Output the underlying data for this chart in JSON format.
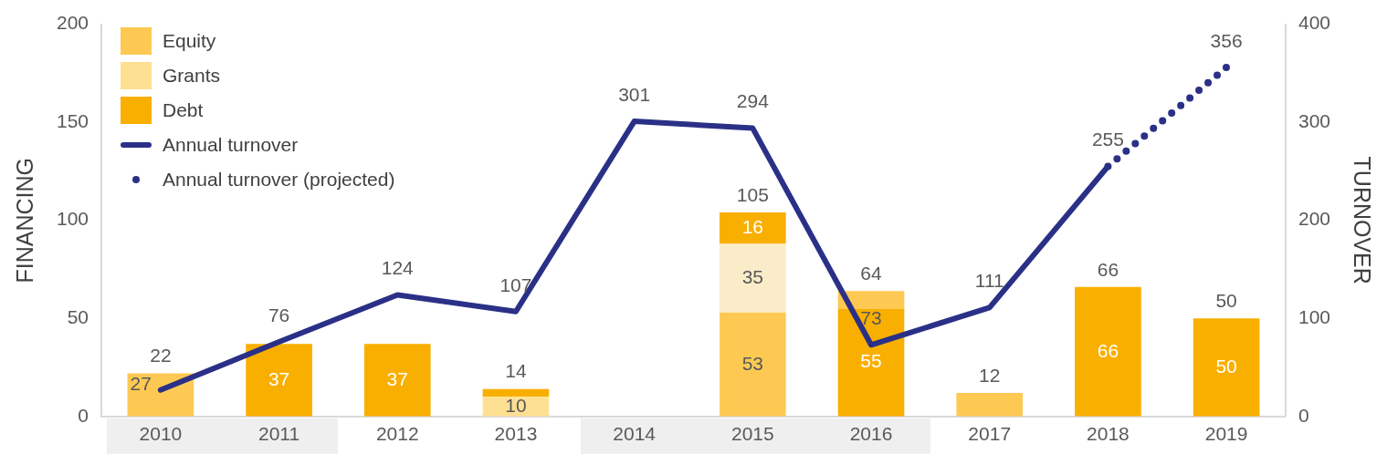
{
  "chart_data": {
    "type": "bar",
    "stacked": true,
    "categories": [
      "2010",
      "2011",
      "2012",
      "2013",
      "2014",
      "2015",
      "2016",
      "2017",
      "2018",
      "2019"
    ],
    "series": [
      {
        "color": "#f9af00",
        "values": [
          null,
          null,
          null,
          null,
          null,
          null,
          55,
          null,
          null,
          null
        ],
        "value_labels": [
          null,
          null,
          null,
          null,
          null,
          null,
          "55",
          null,
          null,
          null
        ]
      },
      {
        "name": "Equity",
        "color": "#fec953",
        "values": [
          22,
          null,
          null,
          null,
          null,
          53,
          9,
          12,
          null,
          null
        ],
        "value_labels": [
          null,
          null,
          null,
          null,
          null,
          "53",
          null,
          null,
          null,
          null
        ]
      },
      {
        "name": "Grants",
        "color": "#fee092",
        "colors": [
          "#fee092",
          "#fee092",
          "#fee092",
          "#fee092",
          "#fee092",
          "#fbecc9",
          "#fee092",
          "#fee092",
          "#fee092",
          "#fee092"
        ],
        "values": [
          null,
          null,
          null,
          10,
          null,
          35,
          null,
          null,
          null,
          null
        ],
        "value_labels": [
          null,
          null,
          null,
          "10",
          null,
          "35",
          null,
          null,
          null,
          null
        ]
      },
      {
        "name": "Debt",
        "color": "#f9af00",
        "values": [
          null,
          37,
          37,
          4,
          null,
          16,
          null,
          null,
          66,
          50
        ],
        "value_labels": [
          null,
          "37",
          "37",
          null,
          null,
          "16",
          null,
          null,
          "66",
          "50"
        ]
      },
      {
        "name": "Annual turnover",
        "type": "line",
        "axis": "y2",
        "color": "#2b3087",
        "line_style": "solid",
        "values": [
          27,
          76,
          124,
          107,
          301,
          294,
          73,
          111,
          255,
          null
        ],
        "value_labels": [
          "27",
          "76",
          "124",
          "107",
          "301",
          "294",
          "73",
          "111",
          "255",
          null
        ]
      },
      {
        "name": "Annual turnover (projected)",
        "type": "line",
        "axis": "y2",
        "color": "#2b3087",
        "line_style": "dotted",
        "values": [
          null,
          null,
          null,
          null,
          null,
          null,
          null,
          null,
          255,
          356
        ],
        "value_labels": [
          null,
          null,
          null,
          null,
          null,
          null,
          null,
          null,
          null,
          "356"
        ]
      }
    ],
    "totals": [
      "22",
      null,
      null,
      "14",
      null,
      "105",
      "64",
      "12",
      "66",
      "50"
    ],
    "ylabel": "FINANCING",
    "y2label": "TURNOVER",
    "ylim": [
      0,
      200
    ],
    "yticks": [
      0,
      50,
      100,
      150,
      200
    ],
    "y2lim": [
      0,
      400
    ],
    "y2ticks": [
      0,
      100,
      200,
      300,
      400
    ],
    "grid": false,
    "legend": "top left"
  }
}
